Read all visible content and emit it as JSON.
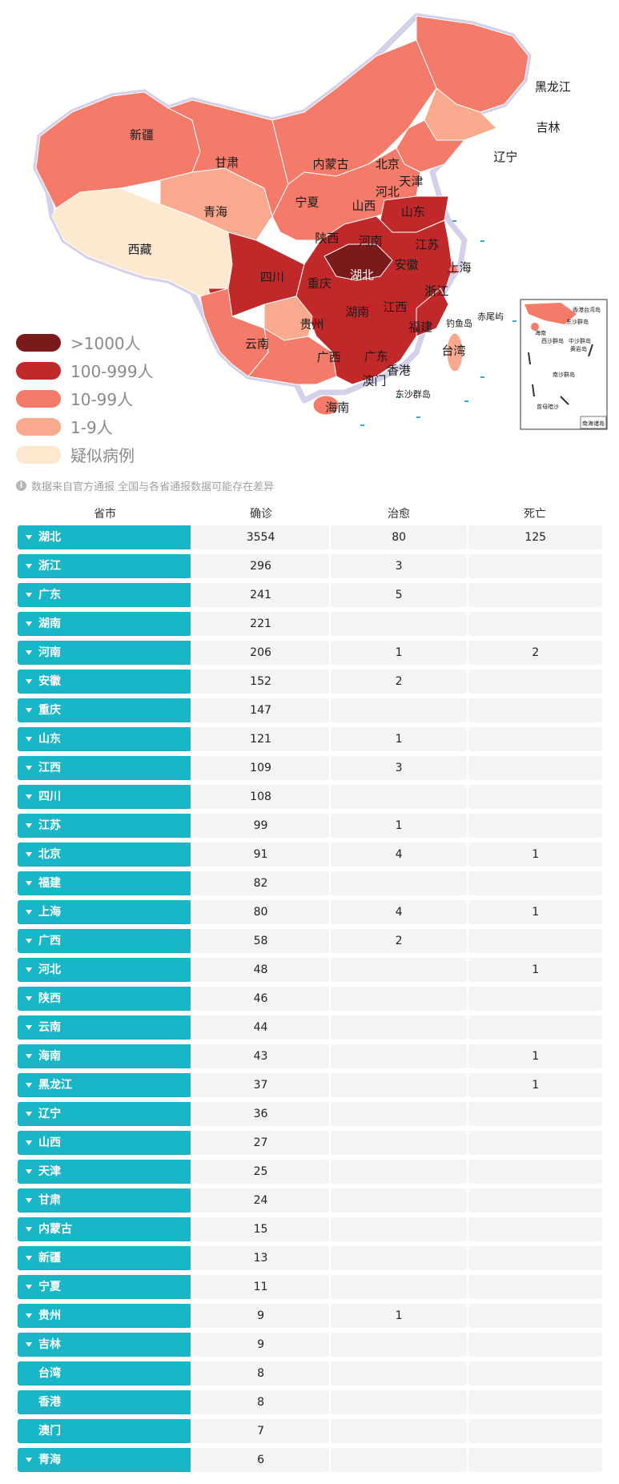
{
  "map": {
    "colors": {
      "gt1000": "#7a1a1a",
      "100_999": "#c0282a",
      "10_99": "#f47a69",
      "1_9": "#f9a98d",
      "suspected": "#fde9cf"
    },
    "province_labels": [
      "黑龙江",
      "吉林",
      "辽宁",
      "新疆",
      "甘肃",
      "内蒙古",
      "北京",
      "天津",
      "河北",
      "宁夏",
      "山西",
      "山东",
      "青海",
      "西藏",
      "陕西",
      "河南",
      "江苏",
      "湖北",
      "安徽",
      "上海",
      "四川",
      "重庆",
      "浙江",
      "湖南",
      "江西",
      "贵州",
      "福建",
      "云南",
      "广西",
      "广东",
      "台湾",
      "澳门",
      "香港",
      "海南",
      "钓鱼岛",
      "赤尾屿",
      "东沙群岛"
    ],
    "inset_labels": [
      "香港",
      "台湾岛",
      "海南",
      "东沙群岛",
      "西沙群岛",
      "中沙群岛",
      "南沙群岛",
      "黄岩岛",
      "曾母暗沙",
      "南海诸岛"
    ]
  },
  "legend": [
    {
      "label": ">1000人",
      "color": "#7a1a1a"
    },
    {
      "label": "100-999人",
      "color": "#c0282a"
    },
    {
      "label": "10-99人",
      "color": "#f47a69"
    },
    {
      "label": "1-9人",
      "color": "#f9a98d"
    },
    {
      "label": "疑似病例",
      "color": "#fde9cf"
    }
  ],
  "note": "数据来自官方通报 全国与各省通报数据可能存在差异",
  "table": {
    "headers": [
      "省市",
      "确诊",
      "治愈",
      "死亡"
    ],
    "rows": [
      {
        "name": "湖北",
        "confirmed": "3554",
        "cured": "80",
        "dead": "125",
        "arrow": true
      },
      {
        "name": "浙江",
        "confirmed": "296",
        "cured": "3",
        "dead": "",
        "arrow": true
      },
      {
        "name": "广东",
        "confirmed": "241",
        "cured": "5",
        "dead": "",
        "arrow": true
      },
      {
        "name": "湖南",
        "confirmed": "221",
        "cured": "",
        "dead": "",
        "arrow": true
      },
      {
        "name": "河南",
        "confirmed": "206",
        "cured": "1",
        "dead": "2",
        "arrow": true
      },
      {
        "name": "安徽",
        "confirmed": "152",
        "cured": "2",
        "dead": "",
        "arrow": true
      },
      {
        "name": "重庆",
        "confirmed": "147",
        "cured": "",
        "dead": "",
        "arrow": true
      },
      {
        "name": "山东",
        "confirmed": "121",
        "cured": "1",
        "dead": "",
        "arrow": true
      },
      {
        "name": "江西",
        "confirmed": "109",
        "cured": "3",
        "dead": "",
        "arrow": true
      },
      {
        "name": "四川",
        "confirmed": "108",
        "cured": "",
        "dead": "",
        "arrow": true
      },
      {
        "name": "江苏",
        "confirmed": "99",
        "cured": "1",
        "dead": "",
        "arrow": true
      },
      {
        "name": "北京",
        "confirmed": "91",
        "cured": "4",
        "dead": "1",
        "arrow": true
      },
      {
        "name": "福建",
        "confirmed": "82",
        "cured": "",
        "dead": "",
        "arrow": true
      },
      {
        "name": "上海",
        "confirmed": "80",
        "cured": "4",
        "dead": "1",
        "arrow": true
      },
      {
        "name": "广西",
        "confirmed": "58",
        "cured": "2",
        "dead": "",
        "arrow": true
      },
      {
        "name": "河北",
        "confirmed": "48",
        "cured": "",
        "dead": "1",
        "arrow": true
      },
      {
        "name": "陕西",
        "confirmed": "46",
        "cured": "",
        "dead": "",
        "arrow": true
      },
      {
        "name": "云南",
        "confirmed": "44",
        "cured": "",
        "dead": "",
        "arrow": true
      },
      {
        "name": "海南",
        "confirmed": "43",
        "cured": "",
        "dead": "1",
        "arrow": true
      },
      {
        "name": "黑龙江",
        "confirmed": "37",
        "cured": "",
        "dead": "1",
        "arrow": true
      },
      {
        "name": "辽宁",
        "confirmed": "36",
        "cured": "",
        "dead": "",
        "arrow": true
      },
      {
        "name": "山西",
        "confirmed": "27",
        "cured": "",
        "dead": "",
        "arrow": true
      },
      {
        "name": "天津",
        "confirmed": "25",
        "cured": "",
        "dead": "",
        "arrow": true
      },
      {
        "name": "甘肃",
        "confirmed": "24",
        "cured": "",
        "dead": "",
        "arrow": true
      },
      {
        "name": "内蒙古",
        "confirmed": "15",
        "cured": "",
        "dead": "",
        "arrow": true
      },
      {
        "name": "新疆",
        "confirmed": "13",
        "cured": "",
        "dead": "",
        "arrow": true
      },
      {
        "name": "宁夏",
        "confirmed": "11",
        "cured": "",
        "dead": "",
        "arrow": true
      },
      {
        "name": "贵州",
        "confirmed": "9",
        "cured": "1",
        "dead": "",
        "arrow": true
      },
      {
        "name": "吉林",
        "confirmed": "9",
        "cured": "",
        "dead": "",
        "arrow": true
      },
      {
        "name": "台湾",
        "confirmed": "8",
        "cured": "",
        "dead": "",
        "arrow": false
      },
      {
        "name": "香港",
        "confirmed": "8",
        "cured": "",
        "dead": "",
        "arrow": false
      },
      {
        "name": "澳门",
        "confirmed": "7",
        "cured": "",
        "dead": "",
        "arrow": false
      },
      {
        "name": "青海",
        "confirmed": "6",
        "cured": "",
        "dead": "",
        "arrow": true
      }
    ]
  }
}
